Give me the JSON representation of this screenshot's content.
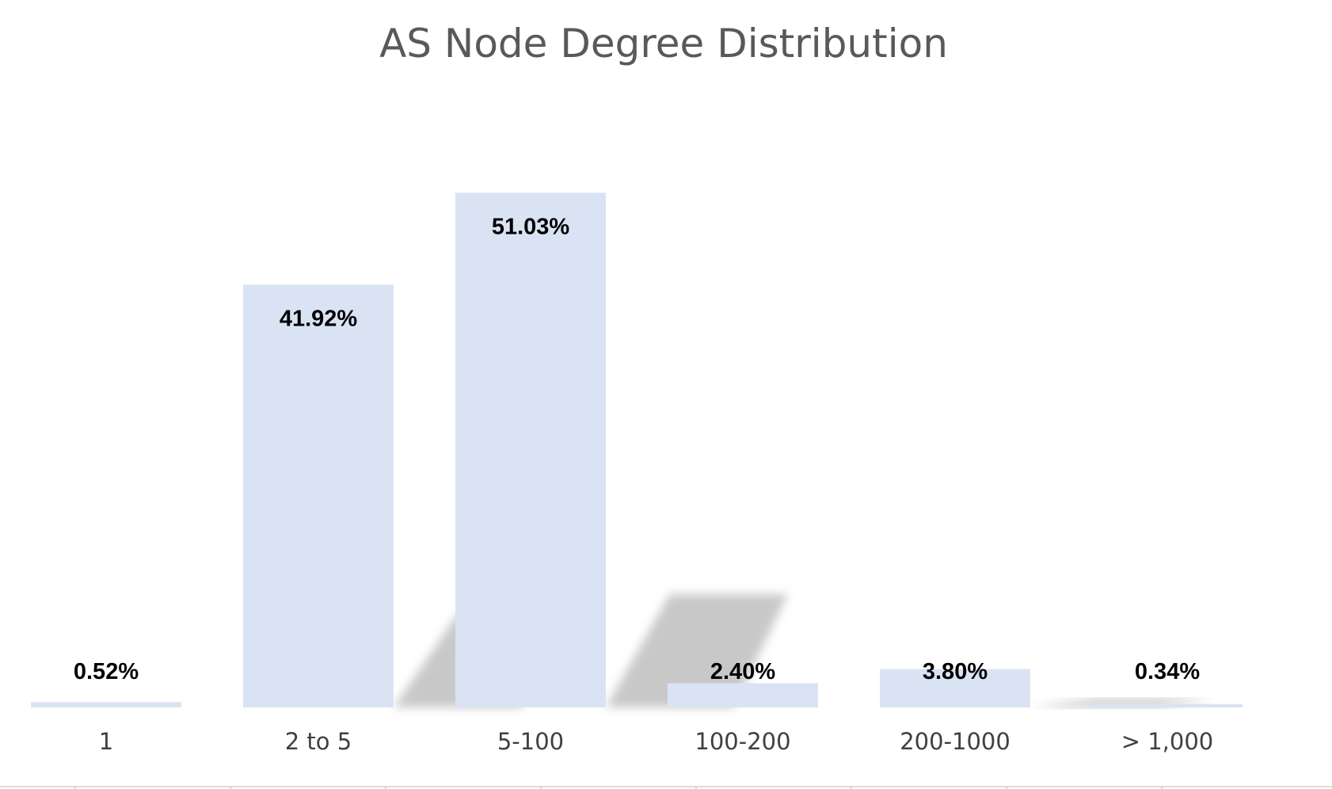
{
  "chart_data": {
    "type": "bar",
    "title": "AS Node Degree Distribution",
    "categories": [
      "1",
      "2 to 5",
      "5-100",
      "100-200",
      "200-1000",
      "> 1,000"
    ],
    "values": [
      0.52,
      41.92,
      51.03,
      2.4,
      3.8,
      0.34
    ],
    "value_labels": [
      "0.52%",
      "41.92%",
      "51.03%",
      "2.40%",
      "3.80%",
      "0.34%"
    ],
    "xlabel": "",
    "ylabel": "",
    "ylim": [
      0,
      60
    ],
    "grid": false,
    "legend": "none",
    "colors": {
      "bar": "#dae3f3",
      "shadow": "#bfbfbf",
      "title": "#595959",
      "label": "#000000",
      "axis": "#d0d0d0"
    }
  }
}
